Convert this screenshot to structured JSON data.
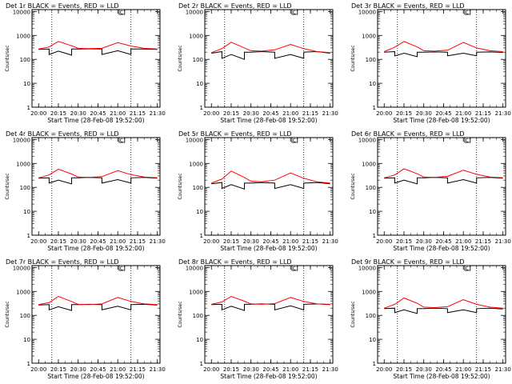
{
  "chart_data": [
    {
      "type": "line",
      "title": "Det 1r BLACK = Events, RED = LLD",
      "series": [
        {
          "color": "#000000",
          "x": [
            "20:00",
            "20:08",
            "20:08",
            "20:15",
            "20:25",
            "20:25",
            "20:30",
            "20:38",
            "20:48",
            "20:48",
            "21:00",
            "21:10",
            "21:10",
            "21:20",
            "21:30"
          ],
          "y": [
            260,
            270,
            160,
            220,
            150,
            270,
            270,
            275,
            270,
            160,
            230,
            160,
            270,
            270,
            260
          ]
        },
        {
          "color": "#ff0000",
          "x": [
            "20:00",
            "20:08",
            "20:15",
            "20:25",
            "20:30",
            "20:38",
            "20:48",
            "21:00",
            "21:10",
            "21:20",
            "21:30"
          ],
          "y": [
            270,
            330,
            560,
            370,
            290,
            280,
            290,
            500,
            360,
            290,
            270
          ]
        }
      ]
    },
    {
      "type": "line",
      "title": "Det 2r BLACK = Events, RED = LLD",
      "series": [
        {
          "color": "#000000",
          "x": [
            "20:00",
            "20:08",
            "20:08",
            "20:15",
            "20:25",
            "20:25",
            "20:30",
            "20:38",
            "20:48",
            "20:48",
            "21:00",
            "21:10",
            "21:10",
            "21:20",
            "21:30"
          ],
          "y": [
            180,
            210,
            110,
            160,
            100,
            200,
            200,
            210,
            200,
            110,
            160,
            110,
            200,
            210,
            180
          ]
        },
        {
          "color": "#ff0000",
          "x": [
            "20:00",
            "20:08",
            "20:15",
            "20:25",
            "20:30",
            "20:38",
            "20:48",
            "21:00",
            "21:10",
            "21:20",
            "21:30"
          ],
          "y": [
            190,
            280,
            520,
            300,
            230,
            220,
            250,
            420,
            280,
            210,
            190
          ]
        }
      ]
    },
    {
      "type": "line",
      "title": "Det 3r BLACK = Events, RED = LLD",
      "series": [
        {
          "color": "#000000",
          "x": [
            "20:00",
            "20:08",
            "20:08",
            "20:15",
            "20:25",
            "20:25",
            "20:30",
            "20:38",
            "20:48",
            "20:48",
            "21:00",
            "21:10",
            "21:10",
            "21:20",
            "21:30"
          ],
          "y": [
            200,
            210,
            140,
            180,
            130,
            200,
            200,
            205,
            200,
            140,
            180,
            140,
            200,
            205,
            195
          ]
        },
        {
          "color": "#ff0000",
          "x": [
            "20:00",
            "20:08",
            "20:15",
            "20:25",
            "20:30",
            "20:38",
            "20:48",
            "21:00",
            "21:10",
            "21:20",
            "21:30"
          ],
          "y": [
            210,
            320,
            560,
            330,
            230,
            220,
            240,
            510,
            300,
            230,
            210
          ]
        }
      ]
    },
    {
      "type": "line",
      "title": "Det 4r BLACK = Events, RED = LLD",
      "series": [
        {
          "color": "#000000",
          "x": [
            "20:00",
            "20:08",
            "20:08",
            "20:15",
            "20:25",
            "20:25",
            "20:30",
            "20:38",
            "20:48",
            "20:48",
            "21:00",
            "21:10",
            "21:10",
            "21:20",
            "21:30"
          ],
          "y": [
            240,
            250,
            150,
            200,
            140,
            250,
            250,
            260,
            250,
            150,
            210,
            150,
            250,
            260,
            240
          ]
        },
        {
          "color": "#ff0000",
          "x": [
            "20:00",
            "20:08",
            "20:15",
            "20:25",
            "20:30",
            "20:38",
            "20:48",
            "21:00",
            "21:10",
            "21:20",
            "21:30"
          ],
          "y": [
            250,
            330,
            580,
            360,
            270,
            260,
            280,
            500,
            340,
            270,
            250
          ]
        }
      ]
    },
    {
      "type": "line",
      "title": "Det 5r BLACK = Events, RED = LLD",
      "series": [
        {
          "color": "#000000",
          "x": [
            "20:00",
            "20:08",
            "20:08",
            "20:15",
            "20:25",
            "20:25",
            "20:30",
            "20:38",
            "20:48",
            "20:48",
            "21:00",
            "21:10",
            "21:10",
            "21:20",
            "21:30"
          ],
          "y": [
            140,
            160,
            90,
            130,
            85,
            150,
            150,
            160,
            150,
            90,
            130,
            90,
            150,
            160,
            140
          ]
        },
        {
          "color": "#ff0000",
          "x": [
            "20:00",
            "20:08",
            "20:15",
            "20:25",
            "20:30",
            "20:38",
            "20:48",
            "21:00",
            "21:10",
            "21:20",
            "21:30"
          ],
          "y": [
            150,
            220,
            480,
            260,
            180,
            170,
            200,
            400,
            240,
            170,
            150
          ]
        }
      ]
    },
    {
      "type": "line",
      "title": "Det 6r BLACK = Events, RED = LLD",
      "series": [
        {
          "color": "#000000",
          "x": [
            "20:00",
            "20:08",
            "20:08",
            "20:15",
            "20:25",
            "20:25",
            "20:30",
            "20:38",
            "20:48",
            "20:48",
            "21:00",
            "21:10",
            "21:10",
            "21:20",
            "21:30"
          ],
          "y": [
            240,
            250,
            150,
            200,
            140,
            250,
            250,
            260,
            250,
            150,
            210,
            150,
            250,
            260,
            240
          ]
        },
        {
          "color": "#ff0000",
          "x": [
            "20:00",
            "20:08",
            "20:15",
            "20:25",
            "20:30",
            "20:38",
            "20:48",
            "21:00",
            "21:10",
            "21:20",
            "21:30"
          ],
          "y": [
            250,
            330,
            600,
            370,
            270,
            260,
            290,
            520,
            350,
            270,
            250
          ]
        }
      ]
    },
    {
      "type": "line",
      "title": "Det 7r BLACK = Events, RED = LLD",
      "series": [
        {
          "color": "#000000",
          "x": [
            "20:00",
            "20:08",
            "20:08",
            "20:15",
            "20:25",
            "20:25",
            "20:30",
            "20:38",
            "20:48",
            "20:48",
            "21:00",
            "21:10",
            "21:10",
            "21:20",
            "21:30"
          ],
          "y": [
            270,
            280,
            170,
            230,
            160,
            280,
            280,
            290,
            280,
            170,
            240,
            170,
            280,
            290,
            270
          ]
        },
        {
          "color": "#ff0000",
          "x": [
            "20:00",
            "20:08",
            "20:15",
            "20:25",
            "20:30",
            "20:38",
            "20:48",
            "21:00",
            "21:10",
            "21:20",
            "21:30"
          ],
          "y": [
            280,
            340,
            620,
            380,
            290,
            280,
            300,
            560,
            380,
            300,
            280
          ]
        }
      ]
    },
    {
      "type": "line",
      "title": "Det 8r BLACK = Events, RED = LLD",
      "series": [
        {
          "color": "#000000",
          "x": [
            "20:00",
            "20:08",
            "20:08",
            "20:15",
            "20:25",
            "20:25",
            "20:30",
            "20:38",
            "20:48",
            "20:48",
            "21:00",
            "21:10",
            "21:10",
            "21:20",
            "21:30"
          ],
          "y": [
            280,
            290,
            170,
            240,
            160,
            290,
            290,
            300,
            290,
            170,
            250,
            170,
            290,
            300,
            280
          ]
        },
        {
          "color": "#ff0000",
          "x": [
            "20:00",
            "20:08",
            "20:15",
            "20:25",
            "20:30",
            "20:38",
            "20:48",
            "21:00",
            "21:10",
            "21:20",
            "21:30"
          ],
          "y": [
            290,
            360,
            620,
            390,
            300,
            290,
            310,
            560,
            380,
            300,
            290
          ]
        }
      ]
    },
    {
      "type": "line",
      "title": "Det 9r BLACK = Events, RED = LLD",
      "series": [
        {
          "color": "#000000",
          "x": [
            "20:00",
            "20:08",
            "20:08",
            "20:15",
            "20:25",
            "20:25",
            "20:30",
            "20:38",
            "20:48",
            "20:48",
            "21:00",
            "21:10",
            "21:10",
            "21:20",
            "21:30"
          ],
          "y": [
            190,
            200,
            130,
            170,
            120,
            190,
            190,
            200,
            190,
            130,
            170,
            130,
            190,
            200,
            185
          ]
        },
        {
          "color": "#ff0000",
          "x": [
            "20:00",
            "20:08",
            "20:15",
            "20:25",
            "20:30",
            "20:38",
            "20:48",
            "21:00",
            "21:10",
            "21:20",
            "21:30"
          ],
          "y": [
            200,
            290,
            530,
            320,
            220,
            210,
            230,
            450,
            290,
            220,
            200
          ]
        }
      ]
    }
  ],
  "common": {
    "ylabel": "Counts/sec",
    "xlabel": "Start Time (28-Feb-08 19:52:00)",
    "xticks": [
      "20:00",
      "20:15",
      "20:30",
      "20:45",
      "21:00",
      "21:15",
      "21:30"
    ],
    "xlim": [
      "19:55",
      "21:32"
    ],
    "yscale": "log",
    "ylim": [
      1,
      12000
    ],
    "yticks": [
      1,
      10,
      100,
      1000,
      10000
    ],
    "ytick_labels": [
      "1",
      "10",
      "100",
      "1000",
      "10000"
    ],
    "vlines": [
      "20:10",
      "21:10"
    ],
    "marker_label": "C",
    "marker_x": "21:01"
  }
}
